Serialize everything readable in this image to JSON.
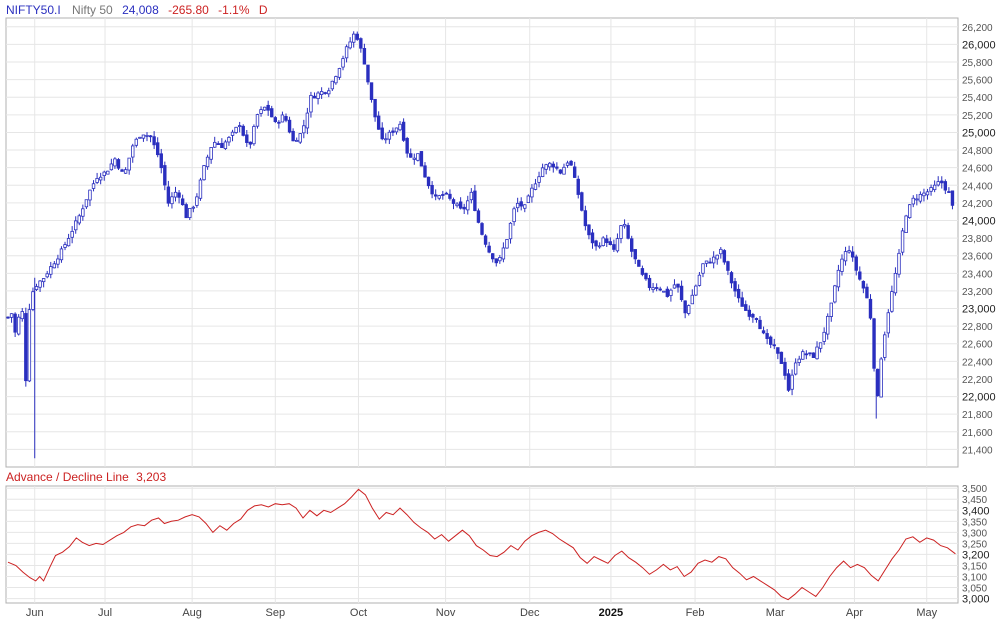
{
  "header": {
    "symbol": "NIFTY50.I",
    "name": "Nifty 50",
    "last": "24,008",
    "change": "-265.80",
    "change_pct": "-1.1%",
    "interval": "D"
  },
  "indicator": {
    "title": "Advance / Decline Line",
    "last": "3,203"
  },
  "colors": {
    "candle": "#2a2fbf",
    "ad_line": "#cc2222",
    "negative": "#cc2222",
    "header_value": "#2a2fbf",
    "grid": "#e6e6e6",
    "border": "#b0b0b0"
  },
  "x_axis": {
    "months": [
      "Jun",
      "Jul",
      "Aug",
      "Sep",
      "Oct",
      "Nov",
      "Dec",
      "2025",
      "Feb",
      "Mar",
      "Apr",
      "May"
    ],
    "year_label": "2025"
  },
  "chart_data": [
    {
      "type": "candlestick",
      "series": "Nifty 50 daily",
      "ylim": [
        21200,
        26300
      ],
      "yticks": [
        21400,
        21600,
        21800,
        22000,
        22200,
        22400,
        22600,
        22800,
        23000,
        23200,
        23400,
        23600,
        23800,
        24000,
        24200,
        24400,
        24600,
        24800,
        25000,
        25200,
        25400,
        25600,
        25800,
        26000,
        26200
      ],
      "major_ticks": [
        22000,
        23000,
        24000,
        25000,
        26000
      ],
      "close_path": [
        {
          "d": 0,
          "v": 22900
        },
        {
          "d": 4,
          "v": 22950
        },
        {
          "d": 9,
          "v": 22600
        },
        {
          "d": 13,
          "v": 23250
        },
        {
          "d": 18,
          "v": 22200
        },
        {
          "d": 22,
          "v": 23100
        },
        {
          "d": 27,
          "v": 23250
        },
        {
          "d": 36,
          "v": 23350
        },
        {
          "d": 45,
          "v": 23500
        },
        {
          "d": 54,
          "v": 23650
        },
        {
          "d": 63,
          "v": 23850
        },
        {
          "d": 72,
          "v": 24050
        },
        {
          "d": 81,
          "v": 24300
        },
        {
          "d": 90,
          "v": 24500
        },
        {
          "d": 99,
          "v": 24550
        },
        {
          "d": 108,
          "v": 24700
        },
        {
          "d": 117,
          "v": 24500
        },
        {
          "d": 126,
          "v": 24850
        },
        {
          "d": 135,
          "v": 25000
        },
        {
          "d": 144,
          "v": 24950
        },
        {
          "d": 153,
          "v": 24700
        },
        {
          "d": 162,
          "v": 24200
        },
        {
          "d": 171,
          "v": 24350
        },
        {
          "d": 180,
          "v": 24050
        },
        {
          "d": 189,
          "v": 24200
        },
        {
          "d": 198,
          "v": 24600
        },
        {
          "d": 207,
          "v": 24900
        },
        {
          "d": 216,
          "v": 24850
        },
        {
          "d": 225,
          "v": 24950
        },
        {
          "d": 234,
          "v": 25100
        },
        {
          "d": 243,
          "v": 24800
        },
        {
          "d": 252,
          "v": 25200
        },
        {
          "d": 261,
          "v": 25300
        },
        {
          "d": 270,
          "v": 25100
        },
        {
          "d": 279,
          "v": 25200
        },
        {
          "d": 288,
          "v": 24900
        },
        {
          "d": 297,
          "v": 25000
        },
        {
          "d": 306,
          "v": 25400
        },
        {
          "d": 315,
          "v": 25450
        },
        {
          "d": 324,
          "v": 25500
        },
        {
          "d": 333,
          "v": 25700
        },
        {
          "d": 342,
          "v": 25950
        },
        {
          "d": 351,
          "v": 26150
        },
        {
          "d": 360,
          "v": 25800
        },
        {
          "d": 369,
          "v": 25250
        },
        {
          "d": 378,
          "v": 24900
        },
        {
          "d": 387,
          "v": 25000
        },
        {
          "d": 396,
          "v": 25100
        },
        {
          "d": 405,
          "v": 24700
        },
        {
          "d": 414,
          "v": 24750
        },
        {
          "d": 423,
          "v": 24450
        },
        {
          "d": 432,
          "v": 24250
        },
        {
          "d": 441,
          "v": 24300
        },
        {
          "d": 450,
          "v": 24200
        },
        {
          "d": 459,
          "v": 24100
        },
        {
          "d": 468,
          "v": 24300
        },
        {
          "d": 477,
          "v": 23900
        },
        {
          "d": 486,
          "v": 23650
        },
        {
          "d": 495,
          "v": 23500
        },
        {
          "d": 504,
          "v": 23800
        },
        {
          "d": 513,
          "v": 24200
        },
        {
          "d": 522,
          "v": 24150
        },
        {
          "d": 531,
          "v": 24400
        },
        {
          "d": 540,
          "v": 24600
        },
        {
          "d": 549,
          "v": 24650
        },
        {
          "d": 558,
          "v": 24550
        },
        {
          "d": 567,
          "v": 24700
        },
        {
          "d": 576,
          "v": 24300
        },
        {
          "d": 585,
          "v": 23850
        },
        {
          "d": 594,
          "v": 23700
        },
        {
          "d": 603,
          "v": 23800
        },
        {
          "d": 612,
          "v": 23650
        },
        {
          "d": 621,
          "v": 24000
        },
        {
          "d": 630,
          "v": 23650
        },
        {
          "d": 639,
          "v": 23400
        },
        {
          "d": 648,
          "v": 23250
        },
        {
          "d": 657,
          "v": 23250
        },
        {
          "d": 666,
          "v": 23150
        },
        {
          "d": 675,
          "v": 23300
        },
        {
          "d": 684,
          "v": 22950
        },
        {
          "d": 693,
          "v": 23200
        },
        {
          "d": 702,
          "v": 23500
        },
        {
          "d": 711,
          "v": 23550
        },
        {
          "d": 720,
          "v": 23650
        },
        {
          "d": 729,
          "v": 23350
        },
        {
          "d": 738,
          "v": 23100
        },
        {
          "d": 747,
          "v": 22950
        },
        {
          "d": 756,
          "v": 22900
        },
        {
          "d": 765,
          "v": 22650
        },
        {
          "d": 774,
          "v": 22550
        },
        {
          "d": 783,
          "v": 22350
        },
        {
          "d": 789,
          "v": 22050
        },
        {
          "d": 795,
          "v": 22400
        },
        {
          "d": 804,
          "v": 22500
        },
        {
          "d": 813,
          "v": 22450
        },
        {
          "d": 822,
          "v": 22650
        },
        {
          "d": 831,
          "v": 23000
        },
        {
          "d": 840,
          "v": 23500
        },
        {
          "d": 849,
          "v": 23700
        },
        {
          "d": 858,
          "v": 23400
        },
        {
          "d": 867,
          "v": 23150
        },
        {
          "d": 873,
          "v": 22800
        },
        {
          "d": 877,
          "v": 21800
        },
        {
          "d": 882,
          "v": 22450
        },
        {
          "d": 888,
          "v": 22900
        },
        {
          "d": 894,
          "v": 23250
        },
        {
          "d": 900,
          "v": 23600
        },
        {
          "d": 906,
          "v": 24050
        },
        {
          "d": 915,
          "v": 24250
        },
        {
          "d": 924,
          "v": 24300
        },
        {
          "d": 933,
          "v": 24350
        },
        {
          "d": 942,
          "v": 24450
        },
        {
          "d": 951,
          "v": 24300
        },
        {
          "d": 957,
          "v": 24008
        }
      ]
    },
    {
      "type": "line",
      "series": "Advance / Decline Line",
      "ylim": [
        2980,
        3510
      ],
      "yticks": [
        3000,
        3050,
        3100,
        3150,
        3200,
        3250,
        3300,
        3350,
        3400,
        3450,
        3500
      ],
      "major_ticks": [
        3000,
        3200,
        3400
      ],
      "values_path": [
        {
          "d": 0,
          "v": 3165
        },
        {
          "d": 8,
          "v": 3150
        },
        {
          "d": 15,
          "v": 3120
        },
        {
          "d": 22,
          "v": 3095
        },
        {
          "d": 28,
          "v": 3080
        },
        {
          "d": 32,
          "v": 3100
        },
        {
          "d": 36,
          "v": 3080
        },
        {
          "d": 42,
          "v": 3140
        },
        {
          "d": 48,
          "v": 3195
        },
        {
          "d": 55,
          "v": 3210
        },
        {
          "d": 62,
          "v": 3235
        },
        {
          "d": 69,
          "v": 3275
        },
        {
          "d": 75,
          "v": 3255
        },
        {
          "d": 82,
          "v": 3240
        },
        {
          "d": 89,
          "v": 3250
        },
        {
          "d": 96,
          "v": 3245
        },
        {
          "d": 103,
          "v": 3265
        },
        {
          "d": 110,
          "v": 3285
        },
        {
          "d": 117,
          "v": 3300
        },
        {
          "d": 124,
          "v": 3325
        },
        {
          "d": 131,
          "v": 3335
        },
        {
          "d": 138,
          "v": 3330
        },
        {
          "d": 145,
          "v": 3355
        },
        {
          "d": 152,
          "v": 3365
        },
        {
          "d": 158,
          "v": 3340
        },
        {
          "d": 165,
          "v": 3350
        },
        {
          "d": 172,
          "v": 3355
        },
        {
          "d": 179,
          "v": 3370
        },
        {
          "d": 186,
          "v": 3380
        },
        {
          "d": 193,
          "v": 3370
        },
        {
          "d": 200,
          "v": 3340
        },
        {
          "d": 207,
          "v": 3300
        },
        {
          "d": 214,
          "v": 3330
        },
        {
          "d": 221,
          "v": 3310
        },
        {
          "d": 228,
          "v": 3340
        },
        {
          "d": 235,
          "v": 3360
        },
        {
          "d": 242,
          "v": 3400
        },
        {
          "d": 249,
          "v": 3420
        },
        {
          "d": 256,
          "v": 3425
        },
        {
          "d": 263,
          "v": 3415
        },
        {
          "d": 270,
          "v": 3430
        },
        {
          "d": 277,
          "v": 3425
        },
        {
          "d": 284,
          "v": 3430
        },
        {
          "d": 291,
          "v": 3410
        },
        {
          "d": 298,
          "v": 3365
        },
        {
          "d": 305,
          "v": 3400
        },
        {
          "d": 312,
          "v": 3375
        },
        {
          "d": 319,
          "v": 3400
        },
        {
          "d": 326,
          "v": 3390
        },
        {
          "d": 333,
          "v": 3410
        },
        {
          "d": 340,
          "v": 3430
        },
        {
          "d": 347,
          "v": 3460
        },
        {
          "d": 354,
          "v": 3495
        },
        {
          "d": 361,
          "v": 3470
        },
        {
          "d": 368,
          "v": 3410
        },
        {
          "d": 375,
          "v": 3360
        },
        {
          "d": 382,
          "v": 3390
        },
        {
          "d": 389,
          "v": 3380
        },
        {
          "d": 396,
          "v": 3410
        },
        {
          "d": 403,
          "v": 3380
        },
        {
          "d": 410,
          "v": 3345
        },
        {
          "d": 417,
          "v": 3320
        },
        {
          "d": 424,
          "v": 3300
        },
        {
          "d": 431,
          "v": 3270
        },
        {
          "d": 438,
          "v": 3290
        },
        {
          "d": 445,
          "v": 3260
        },
        {
          "d": 452,
          "v": 3285
        },
        {
          "d": 459,
          "v": 3310
        },
        {
          "d": 466,
          "v": 3285
        },
        {
          "d": 473,
          "v": 3240
        },
        {
          "d": 480,
          "v": 3220
        },
        {
          "d": 487,
          "v": 3195
        },
        {
          "d": 494,
          "v": 3190
        },
        {
          "d": 501,
          "v": 3210
        },
        {
          "d": 508,
          "v": 3240
        },
        {
          "d": 515,
          "v": 3220
        },
        {
          "d": 522,
          "v": 3260
        },
        {
          "d": 529,
          "v": 3285
        },
        {
          "d": 536,
          "v": 3300
        },
        {
          "d": 543,
          "v": 3310
        },
        {
          "d": 550,
          "v": 3295
        },
        {
          "d": 557,
          "v": 3270
        },
        {
          "d": 564,
          "v": 3250
        },
        {
          "d": 571,
          "v": 3230
        },
        {
          "d": 578,
          "v": 3185
        },
        {
          "d": 585,
          "v": 3160
        },
        {
          "d": 592,
          "v": 3190
        },
        {
          "d": 599,
          "v": 3175
        },
        {
          "d": 606,
          "v": 3160
        },
        {
          "d": 613,
          "v": 3195
        },
        {
          "d": 620,
          "v": 3215
        },
        {
          "d": 627,
          "v": 3185
        },
        {
          "d": 634,
          "v": 3165
        },
        {
          "d": 641,
          "v": 3140
        },
        {
          "d": 648,
          "v": 3110
        },
        {
          "d": 655,
          "v": 3130
        },
        {
          "d": 662,
          "v": 3155
        },
        {
          "d": 669,
          "v": 3130
        },
        {
          "d": 676,
          "v": 3145
        },
        {
          "d": 683,
          "v": 3100
        },
        {
          "d": 690,
          "v": 3120
        },
        {
          "d": 697,
          "v": 3160
        },
        {
          "d": 704,
          "v": 3175
        },
        {
          "d": 711,
          "v": 3165
        },
        {
          "d": 718,
          "v": 3190
        },
        {
          "d": 725,
          "v": 3180
        },
        {
          "d": 732,
          "v": 3140
        },
        {
          "d": 739,
          "v": 3115
        },
        {
          "d": 746,
          "v": 3085
        },
        {
          "d": 753,
          "v": 3100
        },
        {
          "d": 760,
          "v": 3080
        },
        {
          "d": 767,
          "v": 3060
        },
        {
          "d": 774,
          "v": 3040
        },
        {
          "d": 781,
          "v": 3010
        },
        {
          "d": 788,
          "v": 2995
        },
        {
          "d": 795,
          "v": 3020
        },
        {
          "d": 802,
          "v": 3050
        },
        {
          "d": 809,
          "v": 3030
        },
        {
          "d": 816,
          "v": 3010
        },
        {
          "d": 823,
          "v": 3050
        },
        {
          "d": 830,
          "v": 3100
        },
        {
          "d": 837,
          "v": 3140
        },
        {
          "d": 844,
          "v": 3170
        },
        {
          "d": 851,
          "v": 3140
        },
        {
          "d": 858,
          "v": 3155
        },
        {
          "d": 865,
          "v": 3140
        },
        {
          "d": 872,
          "v": 3105
        },
        {
          "d": 879,
          "v": 3080
        },
        {
          "d": 886,
          "v": 3130
        },
        {
          "d": 893,
          "v": 3180
        },
        {
          "d": 900,
          "v": 3220
        },
        {
          "d": 907,
          "v": 3270
        },
        {
          "d": 914,
          "v": 3280
        },
        {
          "d": 921,
          "v": 3255
        },
        {
          "d": 928,
          "v": 3275
        },
        {
          "d": 935,
          "v": 3265
        },
        {
          "d": 942,
          "v": 3240
        },
        {
          "d": 949,
          "v": 3230
        },
        {
          "d": 957,
          "v": 3203
        }
      ]
    }
  ]
}
